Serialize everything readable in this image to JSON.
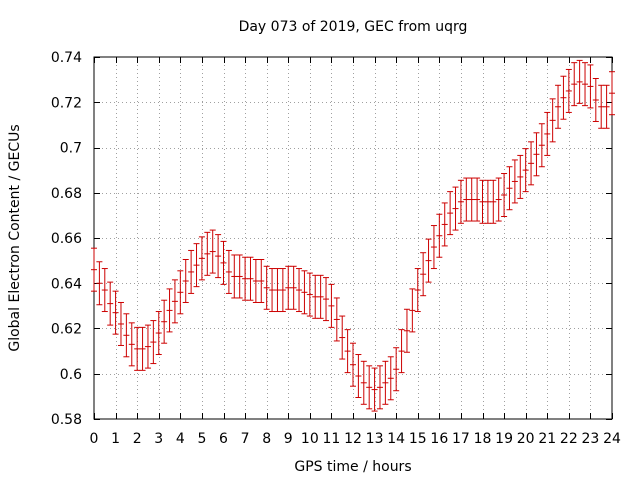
{
  "chart_data": {
    "type": "scatter",
    "title": "Day 073 of 2019, GEC from uqrg",
    "xlabel": "GPS time / hours",
    "ylabel": "Global Electron Content / GECUs",
    "xlim": [
      0,
      24
    ],
    "ylim": [
      0.58,
      0.74
    ],
    "x_ticks": [
      0,
      1,
      2,
      3,
      4,
      5,
      6,
      7,
      8,
      9,
      10,
      11,
      12,
      13,
      14,
      15,
      16,
      17,
      18,
      19,
      20,
      21,
      22,
      23,
      24
    ],
    "y_ticks": [
      0.58,
      0.6,
      0.62,
      0.64,
      0.66,
      0.68,
      0.7,
      0.72,
      0.74
    ],
    "y_tick_labels": [
      "0.58",
      "0.6",
      "0.62",
      "0.64",
      "0.66",
      "0.68",
      "0.7",
      "0.72",
      "0.74"
    ],
    "grid": true,
    "color": "#cc0000",
    "series": [
      {
        "name": "GEC",
        "error": 0.0095,
        "x": [
          0,
          0.25,
          0.5,
          0.75,
          1,
          1.25,
          1.5,
          1.75,
          2,
          2.25,
          2.5,
          2.75,
          3,
          3.25,
          3.5,
          3.75,
          4,
          4.25,
          4.5,
          4.75,
          5,
          5.25,
          5.5,
          5.75,
          6,
          6.25,
          6.5,
          6.75,
          7,
          7.25,
          7.5,
          7.75,
          8,
          8.25,
          8.5,
          8.75,
          9,
          9.25,
          9.5,
          9.75,
          10,
          10.25,
          10.5,
          10.75,
          11,
          11.25,
          11.5,
          11.75,
          12,
          12.25,
          12.5,
          12.75,
          13,
          13.25,
          13.5,
          13.75,
          14,
          14.25,
          14.5,
          14.75,
          15,
          15.25,
          15.5,
          15.75,
          16,
          16.25,
          16.5,
          16.75,
          17,
          17.25,
          17.5,
          17.75,
          18,
          18.25,
          18.5,
          18.75,
          19,
          19.25,
          19.5,
          19.75,
          20,
          20.25,
          20.5,
          20.75,
          21,
          21.25,
          21.5,
          21.75,
          22,
          22.25,
          22.5,
          22.75,
          23,
          23.25,
          23.5,
          23.75,
          24
        ],
        "y": [
          0.646,
          0.64,
          0.637,
          0.631,
          0.627,
          0.622,
          0.617,
          0.613,
          0.611,
          0.611,
          0.612,
          0.614,
          0.618,
          0.623,
          0.628,
          0.632,
          0.636,
          0.641,
          0.645,
          0.648,
          0.651,
          0.653,
          0.654,
          0.652,
          0.649,
          0.645,
          0.643,
          0.643,
          0.642,
          0.642,
          0.641,
          0.641,
          0.638,
          0.637,
          0.637,
          0.637,
          0.638,
          0.638,
          0.637,
          0.636,
          0.635,
          0.634,
          0.634,
          0.633,
          0.63,
          0.624,
          0.616,
          0.61,
          0.604,
          0.599,
          0.596,
          0.594,
          0.593,
          0.594,
          0.596,
          0.598,
          0.602,
          0.61,
          0.619,
          0.628,
          0.637,
          0.644,
          0.65,
          0.656,
          0.661,
          0.666,
          0.671,
          0.673,
          0.676,
          0.677,
          0.677,
          0.677,
          0.676,
          0.676,
          0.676,
          0.677,
          0.679,
          0.682,
          0.685,
          0.687,
          0.69,
          0.693,
          0.697,
          0.701,
          0.706,
          0.712,
          0.718,
          0.722,
          0.725,
          0.728,
          0.729,
          0.728,
          0.727,
          0.721,
          0.718,
          0.718,
          0.724
        ]
      }
    ]
  }
}
